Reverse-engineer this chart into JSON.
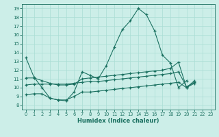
{
  "xlabel": "Humidex (Indice chaleur)",
  "bg_color": "#cceee8",
  "grid_color": "#aaddd5",
  "line_color": "#1a7060",
  "xlim": [
    -0.5,
    23.5
  ],
  "ylim": [
    7.5,
    19.5
  ],
  "xticks": [
    0,
    1,
    2,
    3,
    4,
    5,
    6,
    7,
    8,
    9,
    10,
    11,
    12,
    13,
    14,
    15,
    16,
    17,
    18,
    19,
    20,
    21,
    22,
    23
  ],
  "yticks": [
    8,
    9,
    10,
    11,
    12,
    13,
    14,
    15,
    16,
    17,
    18,
    19
  ],
  "line1_x": [
    0,
    1,
    2,
    3,
    4,
    5,
    6,
    7,
    8,
    9,
    10,
    11,
    12,
    13,
    14,
    15,
    16,
    17,
    18,
    19,
    20,
    21
  ],
  "line1_y": [
    13.4,
    11.2,
    10.0,
    8.8,
    8.6,
    8.5,
    9.5,
    11.8,
    11.4,
    11.0,
    12.5,
    14.6,
    16.6,
    17.6,
    19.0,
    18.3,
    16.5,
    13.7,
    12.8,
    10.0,
    10.8,
    null
  ],
  "line2_x": [
    0,
    1,
    2,
    3,
    4,
    5,
    6,
    7,
    8,
    9,
    10,
    11,
    12,
    13,
    14,
    15,
    16,
    17,
    18,
    19,
    20,
    21,
    22,
    23
  ],
  "line2_y": [
    11.1,
    11.1,
    10.8,
    10.5,
    10.3,
    10.3,
    10.4,
    11.0,
    11.1,
    11.2,
    11.3,
    11.4,
    11.5,
    11.6,
    11.7,
    11.8,
    11.9,
    12.0,
    12.2,
    12.9,
    10.0,
    10.8,
    null,
    null
  ],
  "line3_x": [
    0,
    1,
    2,
    3,
    4,
    5,
    6,
    7,
    8,
    9,
    10,
    11,
    12,
    13,
    14,
    15,
    16,
    17,
    18,
    19,
    20,
    21,
    22,
    23
  ],
  "line3_y": [
    10.3,
    10.4,
    10.4,
    10.4,
    10.4,
    10.4,
    10.5,
    10.6,
    10.7,
    10.7,
    10.8,
    10.9,
    11.0,
    11.1,
    11.2,
    11.3,
    11.4,
    11.5,
    11.6,
    11.8,
    10.1,
    10.6,
    null,
    null
  ],
  "line4_x": [
    0,
    1,
    2,
    3,
    4,
    5,
    6,
    7,
    8,
    9,
    10,
    11,
    12,
    13,
    14,
    15,
    16,
    17,
    18,
    19,
    20,
    21,
    22,
    23
  ],
  "line4_y": [
    9.2,
    9.3,
    9.3,
    8.8,
    8.6,
    8.6,
    9.0,
    9.5,
    9.5,
    9.6,
    9.7,
    9.8,
    9.9,
    10.0,
    10.1,
    10.2,
    10.3,
    10.4,
    10.5,
    10.6,
    10.0,
    10.5,
    null,
    null
  ]
}
